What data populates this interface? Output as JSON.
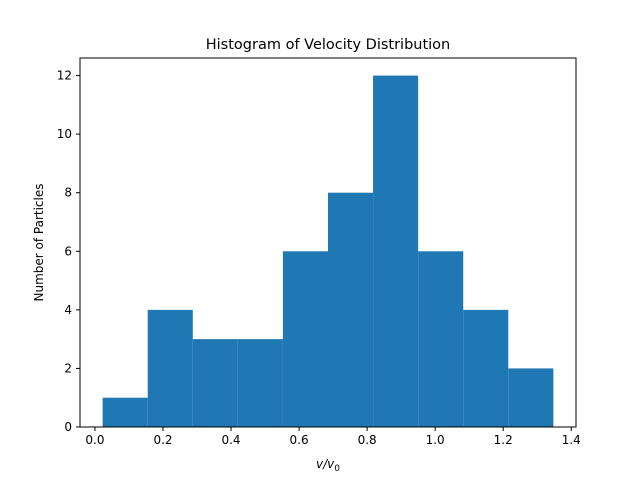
{
  "chart_data": {
    "type": "bar",
    "title": "Histogram of Velocity Distribution",
    "xlabel_main": "v/v",
    "xlabel_sub": "0",
    "ylabel": "Number of Particles",
    "bin_edges": [
      0.0225,
      0.155,
      0.2875,
      0.42,
      0.5525,
      0.685,
      0.8175,
      0.95,
      1.0825,
      1.215,
      1.3475
    ],
    "counts": [
      1,
      4,
      3,
      3,
      6,
      8,
      12,
      6,
      4,
      2
    ],
    "xlim": [
      -0.044,
      1.414
    ],
    "ylim": [
      0,
      12.6
    ],
    "xticks": [
      0.0,
      0.2,
      0.4,
      0.6,
      0.8,
      1.0,
      1.2,
      1.4
    ],
    "yticks": [
      0,
      2,
      4,
      6,
      8,
      10,
      12
    ],
    "bar_color": "#1f77b4",
    "grid": false
  }
}
